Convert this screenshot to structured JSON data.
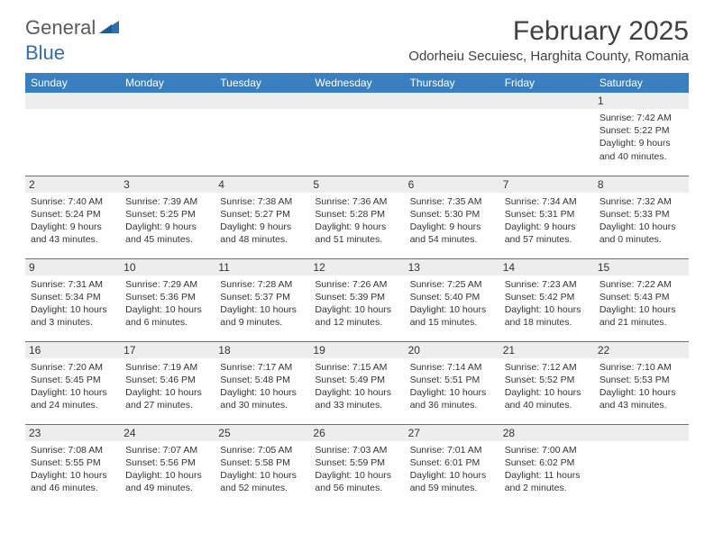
{
  "logo": {
    "general": "General",
    "blue": "Blue"
  },
  "title": "February 2025",
  "location": "Odorheiu Secuiesc, Harghita County, Romania",
  "dayHeaders": [
    "Sunday",
    "Monday",
    "Tuesday",
    "Wednesday",
    "Thursday",
    "Friday",
    "Saturday"
  ],
  "colors": {
    "header_bg": "#3a7fc0",
    "header_text": "#ffffff",
    "daynum_bg": "#ededed",
    "border": "#3a7fc0",
    "text": "#333333",
    "logo_blue": "#2f6fb0",
    "logo_gray": "#5a5a5a"
  },
  "weeks": [
    [
      {
        "n": "",
        "sr": "",
        "ss": "",
        "d1": "",
        "d2": ""
      },
      {
        "n": "",
        "sr": "",
        "ss": "",
        "d1": "",
        "d2": ""
      },
      {
        "n": "",
        "sr": "",
        "ss": "",
        "d1": "",
        "d2": ""
      },
      {
        "n": "",
        "sr": "",
        "ss": "",
        "d1": "",
        "d2": ""
      },
      {
        "n": "",
        "sr": "",
        "ss": "",
        "d1": "",
        "d2": ""
      },
      {
        "n": "",
        "sr": "",
        "ss": "",
        "d1": "",
        "d2": ""
      },
      {
        "n": "1",
        "sr": "Sunrise: 7:42 AM",
        "ss": "Sunset: 5:22 PM",
        "d1": "Daylight: 9 hours",
        "d2": "and 40 minutes."
      }
    ],
    [
      {
        "n": "2",
        "sr": "Sunrise: 7:40 AM",
        "ss": "Sunset: 5:24 PM",
        "d1": "Daylight: 9 hours",
        "d2": "and 43 minutes."
      },
      {
        "n": "3",
        "sr": "Sunrise: 7:39 AM",
        "ss": "Sunset: 5:25 PM",
        "d1": "Daylight: 9 hours",
        "d2": "and 45 minutes."
      },
      {
        "n": "4",
        "sr": "Sunrise: 7:38 AM",
        "ss": "Sunset: 5:27 PM",
        "d1": "Daylight: 9 hours",
        "d2": "and 48 minutes."
      },
      {
        "n": "5",
        "sr": "Sunrise: 7:36 AM",
        "ss": "Sunset: 5:28 PM",
        "d1": "Daylight: 9 hours",
        "d2": "and 51 minutes."
      },
      {
        "n": "6",
        "sr": "Sunrise: 7:35 AM",
        "ss": "Sunset: 5:30 PM",
        "d1": "Daylight: 9 hours",
        "d2": "and 54 minutes."
      },
      {
        "n": "7",
        "sr": "Sunrise: 7:34 AM",
        "ss": "Sunset: 5:31 PM",
        "d1": "Daylight: 9 hours",
        "d2": "and 57 minutes."
      },
      {
        "n": "8",
        "sr": "Sunrise: 7:32 AM",
        "ss": "Sunset: 5:33 PM",
        "d1": "Daylight: 10 hours",
        "d2": "and 0 minutes."
      }
    ],
    [
      {
        "n": "9",
        "sr": "Sunrise: 7:31 AM",
        "ss": "Sunset: 5:34 PM",
        "d1": "Daylight: 10 hours",
        "d2": "and 3 minutes."
      },
      {
        "n": "10",
        "sr": "Sunrise: 7:29 AM",
        "ss": "Sunset: 5:36 PM",
        "d1": "Daylight: 10 hours",
        "d2": "and 6 minutes."
      },
      {
        "n": "11",
        "sr": "Sunrise: 7:28 AM",
        "ss": "Sunset: 5:37 PM",
        "d1": "Daylight: 10 hours",
        "d2": "and 9 minutes."
      },
      {
        "n": "12",
        "sr": "Sunrise: 7:26 AM",
        "ss": "Sunset: 5:39 PM",
        "d1": "Daylight: 10 hours",
        "d2": "and 12 minutes."
      },
      {
        "n": "13",
        "sr": "Sunrise: 7:25 AM",
        "ss": "Sunset: 5:40 PM",
        "d1": "Daylight: 10 hours",
        "d2": "and 15 minutes."
      },
      {
        "n": "14",
        "sr": "Sunrise: 7:23 AM",
        "ss": "Sunset: 5:42 PM",
        "d1": "Daylight: 10 hours",
        "d2": "and 18 minutes."
      },
      {
        "n": "15",
        "sr": "Sunrise: 7:22 AM",
        "ss": "Sunset: 5:43 PM",
        "d1": "Daylight: 10 hours",
        "d2": "and 21 minutes."
      }
    ],
    [
      {
        "n": "16",
        "sr": "Sunrise: 7:20 AM",
        "ss": "Sunset: 5:45 PM",
        "d1": "Daylight: 10 hours",
        "d2": "and 24 minutes."
      },
      {
        "n": "17",
        "sr": "Sunrise: 7:19 AM",
        "ss": "Sunset: 5:46 PM",
        "d1": "Daylight: 10 hours",
        "d2": "and 27 minutes."
      },
      {
        "n": "18",
        "sr": "Sunrise: 7:17 AM",
        "ss": "Sunset: 5:48 PM",
        "d1": "Daylight: 10 hours",
        "d2": "and 30 minutes."
      },
      {
        "n": "19",
        "sr": "Sunrise: 7:15 AM",
        "ss": "Sunset: 5:49 PM",
        "d1": "Daylight: 10 hours",
        "d2": "and 33 minutes."
      },
      {
        "n": "20",
        "sr": "Sunrise: 7:14 AM",
        "ss": "Sunset: 5:51 PM",
        "d1": "Daylight: 10 hours",
        "d2": "and 36 minutes."
      },
      {
        "n": "21",
        "sr": "Sunrise: 7:12 AM",
        "ss": "Sunset: 5:52 PM",
        "d1": "Daylight: 10 hours",
        "d2": "and 40 minutes."
      },
      {
        "n": "22",
        "sr": "Sunrise: 7:10 AM",
        "ss": "Sunset: 5:53 PM",
        "d1": "Daylight: 10 hours",
        "d2": "and 43 minutes."
      }
    ],
    [
      {
        "n": "23",
        "sr": "Sunrise: 7:08 AM",
        "ss": "Sunset: 5:55 PM",
        "d1": "Daylight: 10 hours",
        "d2": "and 46 minutes."
      },
      {
        "n": "24",
        "sr": "Sunrise: 7:07 AM",
        "ss": "Sunset: 5:56 PM",
        "d1": "Daylight: 10 hours",
        "d2": "and 49 minutes."
      },
      {
        "n": "25",
        "sr": "Sunrise: 7:05 AM",
        "ss": "Sunset: 5:58 PM",
        "d1": "Daylight: 10 hours",
        "d2": "and 52 minutes."
      },
      {
        "n": "26",
        "sr": "Sunrise: 7:03 AM",
        "ss": "Sunset: 5:59 PM",
        "d1": "Daylight: 10 hours",
        "d2": "and 56 minutes."
      },
      {
        "n": "27",
        "sr": "Sunrise: 7:01 AM",
        "ss": "Sunset: 6:01 PM",
        "d1": "Daylight: 10 hours",
        "d2": "and 59 minutes."
      },
      {
        "n": "28",
        "sr": "Sunrise: 7:00 AM",
        "ss": "Sunset: 6:02 PM",
        "d1": "Daylight: 11 hours",
        "d2": "and 2 minutes."
      },
      {
        "n": "",
        "sr": "",
        "ss": "",
        "d1": "",
        "d2": ""
      }
    ]
  ]
}
